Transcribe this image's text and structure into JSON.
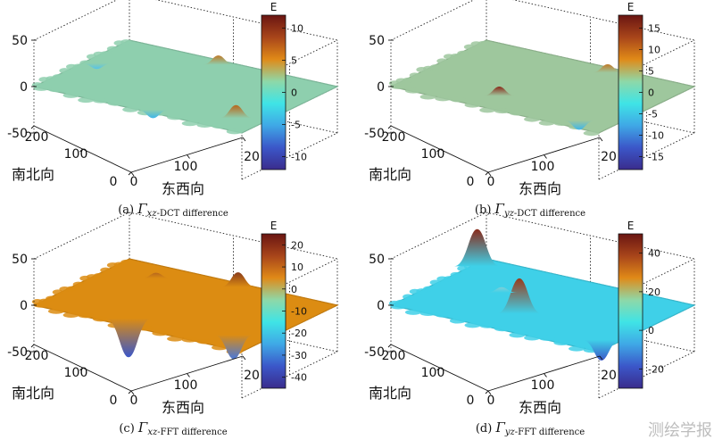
{
  "chart_data": [
    {
      "type": "surface3d",
      "label": "(a)",
      "symbol": "Γ",
      "subscript": "xz",
      "suffix": "-DCT difference",
      "zlim": [
        -50,
        50
      ],
      "zticks": [
        "50",
        "0",
        "-50"
      ],
      "xticks": [
        "0",
        "100",
        "20"
      ],
      "yticks": [
        "0",
        "100",
        "200"
      ],
      "xlabel": "东西向",
      "ylabel": "南北向",
      "colorbar": {
        "title": "E",
        "range": [
          -12,
          12
        ],
        "ticks": [
          "10",
          "5",
          "0",
          "-5",
          "-10"
        ],
        "tick_values": [
          10,
          5,
          0,
          -5,
          -10
        ]
      },
      "surface_color": "#8ecfae",
      "features": [
        {
          "u": 0.88,
          "v": 0.2,
          "h": 14,
          "c": "#b8681c"
        },
        {
          "u": 0.46,
          "v": 0.93,
          "h": 10,
          "c": "#c07a28"
        },
        {
          "u": 0.55,
          "v": 0.05,
          "h": -9,
          "c": "#3fb6ea"
        },
        {
          "u": 0.05,
          "v": 0.55,
          "h": -6,
          "c": "#56c3e8"
        }
      ]
    },
    {
      "type": "surface3d",
      "label": "(b)",
      "symbol": "Γ",
      "subscript": "yz",
      "suffix": "-DCT difference",
      "zlim": [
        -50,
        50
      ],
      "zticks": [
        "50",
        "0",
        "-50"
      ],
      "xticks": [
        "0",
        "100",
        "20"
      ],
      "yticks": [
        "0",
        "100",
        "200"
      ],
      "xlabel": "东西向",
      "ylabel": "南北向",
      "colorbar": {
        "title": "E",
        "range": [
          -18,
          18
        ],
        "ticks": [
          "15",
          "10",
          "5",
          "0",
          "-5",
          "-10",
          "-15"
        ],
        "tick_values": [
          15,
          10,
          5,
          0,
          -5,
          -10,
          -15
        ]
      },
      "surface_color": "#9ec79d",
      "features": [
        {
          "u": 0.62,
          "v": 0.92,
          "h": 9,
          "c": "#c07a28"
        },
        {
          "u": 0.42,
          "v": 0.22,
          "h": 10,
          "c": "#8a2a1a"
        },
        {
          "u": 0.85,
          "v": 0.12,
          "h": -10,
          "c": "#3fb6ea"
        },
        {
          "u": 0.93,
          "v": 0.45,
          "h": -7,
          "c": "#56c3e8"
        }
      ]
    },
    {
      "type": "surface3d",
      "label": "(c)",
      "symbol": "Γ",
      "subscript": "xz",
      "suffix": "-FFT difference",
      "zlim": [
        -50,
        50
      ],
      "zticks": [
        "50",
        "0",
        "-50"
      ],
      "xticks": [
        "0",
        "100",
        "20"
      ],
      "yticks": [
        "0",
        "100",
        "200"
      ],
      "xlabel": "东西向",
      "ylabel": "南北向",
      "colorbar": {
        "title": "E",
        "range": [
          -45,
          25
        ],
        "ticks": [
          "20",
          "10",
          "0",
          "-10",
          "-20",
          "-30",
          "-40"
        ],
        "tick_values": [
          20,
          10,
          0,
          -10,
          -20,
          -30,
          -40
        ]
      },
      "surface_color": "#dc8c12",
      "features": [
        {
          "u": 0.4,
          "v": 0.12,
          "h": -42,
          "c": "#3b57c9"
        },
        {
          "u": 0.86,
          "v": 0.22,
          "h": -26,
          "c": "#4a78d8"
        },
        {
          "u": 0.55,
          "v": 0.94,
          "h": 16,
          "c": "#8a3c1c"
        },
        {
          "u": 0.22,
          "v": 0.8,
          "h": 6,
          "c": "#b8681c"
        }
      ]
    },
    {
      "type": "surface3d",
      "label": "(d)",
      "symbol": "Γ",
      "subscript": "yz",
      "suffix": "-FFT difference",
      "zlim": [
        -50,
        50
      ],
      "zticks": [
        "50",
        "0",
        "-50"
      ],
      "xticks": [
        "0",
        "100",
        "20"
      ],
      "yticks": [
        "0",
        "100",
        "200"
      ],
      "xlabel": "东西向",
      "ylabel": "南北向",
      "colorbar": {
        "title": "E",
        "range": [
          -30,
          50
        ],
        "ticks": [
          "40",
          "20",
          "0",
          "-20"
        ],
        "tick_values": [
          40,
          20,
          0,
          -20
        ]
      },
      "surface_color": "#3fd0e8",
      "features": [
        {
          "u": 0.02,
          "v": 0.86,
          "h": 40,
          "c": "#8a2a1a"
        },
        {
          "u": 0.48,
          "v": 0.3,
          "h": 38,
          "c": "#9a3a1a"
        },
        {
          "u": 0.93,
          "v": 0.18,
          "h": -22,
          "c": "#3b57c9"
        },
        {
          "u": 0.28,
          "v": 0.55,
          "h": 6,
          "c": "#7fcfd8"
        }
      ]
    }
  ],
  "colormap": [
    "#3a2c8c",
    "#3b57c9",
    "#3fa8e6",
    "#3fe4e6",
    "#8ed8a8",
    "#e08a18",
    "#a8451a",
    "#6a1512"
  ],
  "watermark": "测绘学报"
}
